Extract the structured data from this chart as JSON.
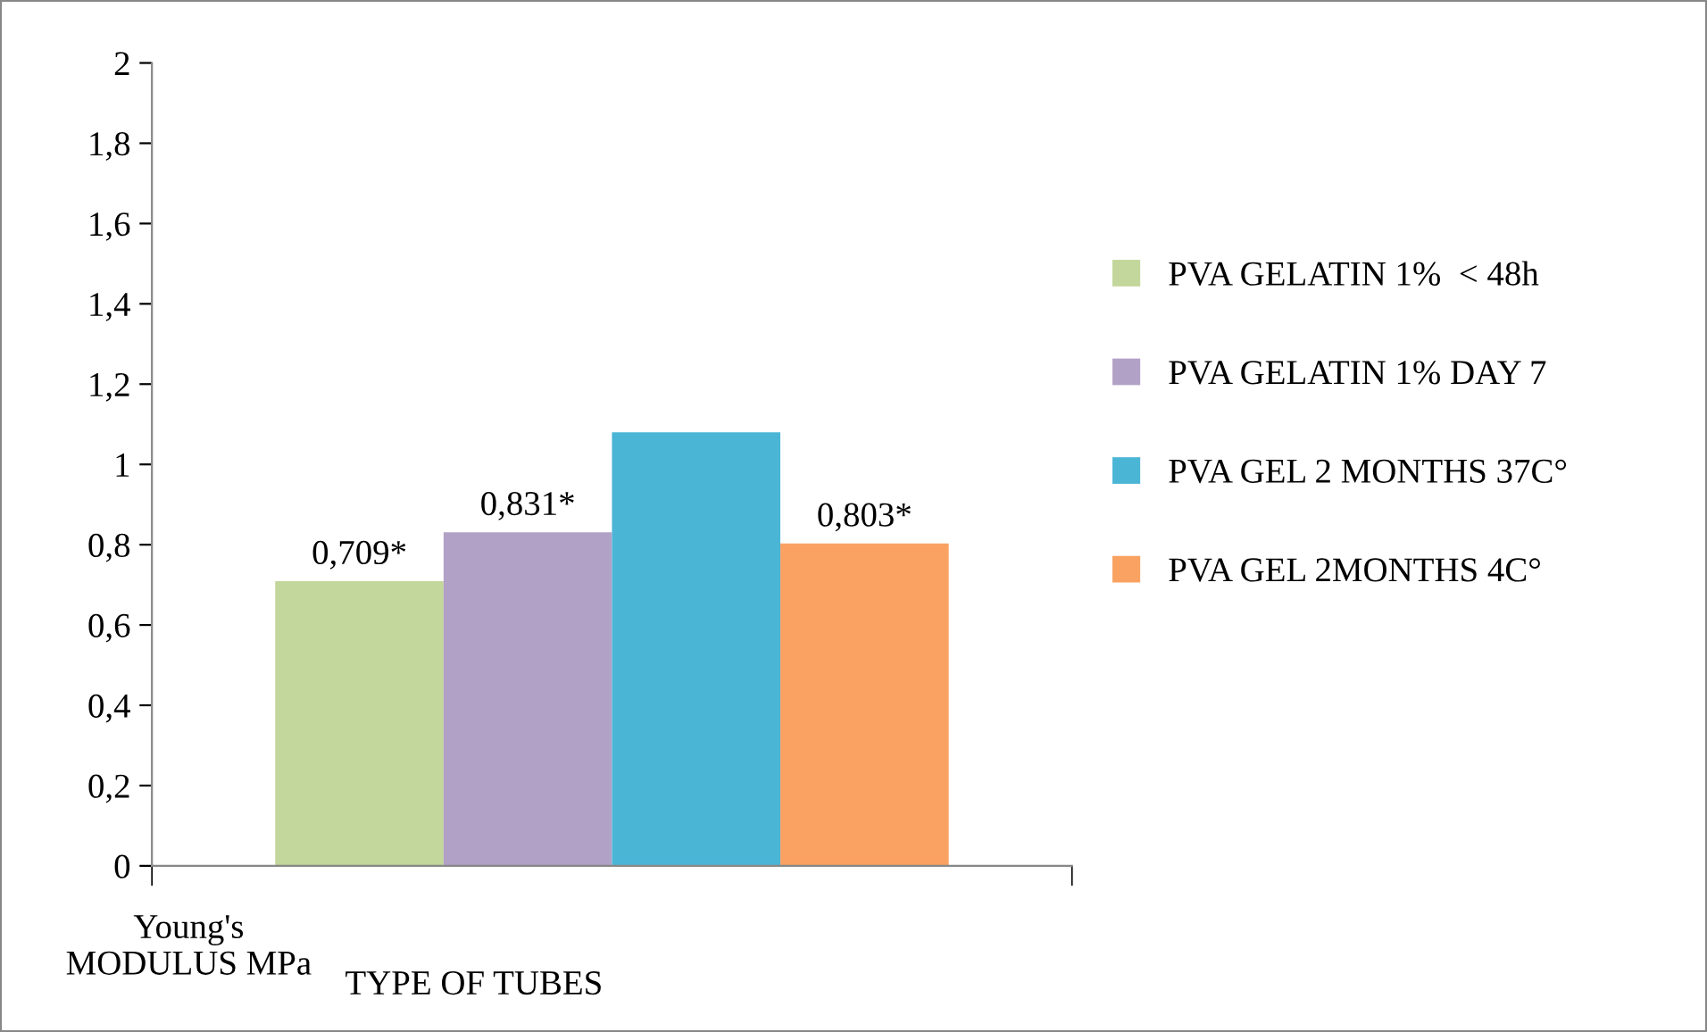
{
  "chart_data": {
    "type": "bar",
    "categories": [
      null
    ],
    "series": [
      {
        "name": "PVA GELATIN 1%  < 48h",
        "color": "#c3d69b",
        "values": [
          0.709
        ],
        "value_labels": [
          "0,709*"
        ]
      },
      {
        "name": "PVA GELATIN 1% DAY 7",
        "color": "#b2a1c7",
        "values": [
          0.831
        ],
        "value_labels": [
          "0,831*"
        ]
      },
      {
        "name": "PVA GEL 2 MONTHS 37C°",
        "color": "#4bb5d6",
        "values": [
          1.08
        ],
        "value_labels": [
          null
        ]
      },
      {
        "name": "PVA GEL 2MONTHS 4C°",
        "color": "#f9a262",
        "values": [
          0.803
        ],
        "value_labels": [
          "0,803*"
        ]
      }
    ],
    "ylim": [
      0,
      2
    ],
    "yticks": [
      0,
      {
        "value": 0.2,
        "label": "0,2"
      },
      {
        "value": 0.4,
        "label": "0,4"
      },
      {
        "value": 0.6,
        "label": "0,6"
      },
      {
        "value": 0.8,
        "label": "0,8"
      },
      1,
      {
        "value": 1.2,
        "label": "1,2"
      },
      {
        "value": 1.4,
        "label": "1,4"
      },
      {
        "value": 1.6,
        "label": "1,6"
      },
      {
        "value": 1.8,
        "label": "1,8"
      },
      2
    ],
    "xlabel": "TYPE OF TUBES",
    "ylabel": "Young's\nMODULUS MPa",
    "legend": "right",
    "grid": false
  }
}
